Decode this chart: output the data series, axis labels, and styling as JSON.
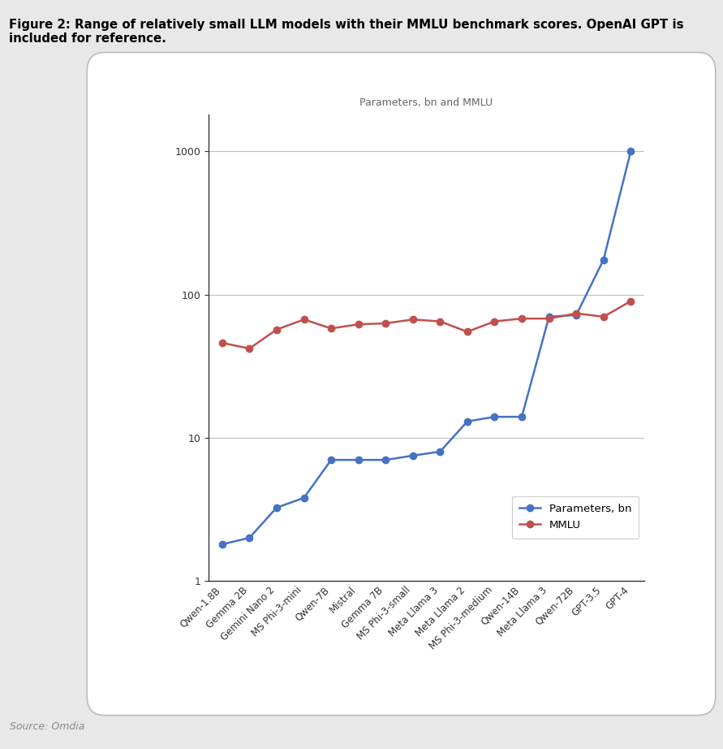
{
  "title": "Parameters, bn and MMLU",
  "figure_title_line1": "Figure 2: Range of relatively small LLM models with their MMLU benchmark scores. OpenAI GPT is",
  "figure_title_line2": "included for reference.",
  "source": "Source: Omdia",
  "categories": [
    "Qwen-1.8B",
    "Gemma 2B",
    "Gemini Nano 2",
    "MS Phi-3-mini",
    "Qwen-7B",
    "Mistral",
    "Gemma 7B",
    "MS Phi-3-small",
    "Meta Llama 3",
    "Meta Llama 2",
    "MS Phi-3-medium",
    "Qwen-14B",
    "Meta Llama 3",
    "Qwen-72B",
    "GPT-3.5",
    "GPT-4"
  ],
  "parameters_bn": [
    1.8,
    2.0,
    3.25,
    3.8,
    7.0,
    7.0,
    7.0,
    7.5,
    8.0,
    13.0,
    14.0,
    14.0,
    70.0,
    72.0,
    175.0,
    1000.0
  ],
  "mmlu": [
    46,
    42,
    57,
    67,
    58,
    62,
    63,
    67,
    65,
    55,
    65,
    68,
    68,
    74,
    70,
    90
  ],
  "params_color": "#4472C4",
  "mmlu_color": "#C0504D",
  "bg_color": "#E8E8E8",
  "header_bg": "#C5D9F1",
  "chart_panel_bg": "#F5F5F5",
  "chart_bg": "#FFFFFF",
  "grid_color": "#C0C0C0",
  "legend_labels": [
    "Parameters, bn",
    "MMLU"
  ],
  "yticks": [
    1,
    10,
    100,
    1000
  ],
  "ylim": [
    1,
    1800
  ],
  "title_color": "#666666",
  "source_color": "#888888"
}
